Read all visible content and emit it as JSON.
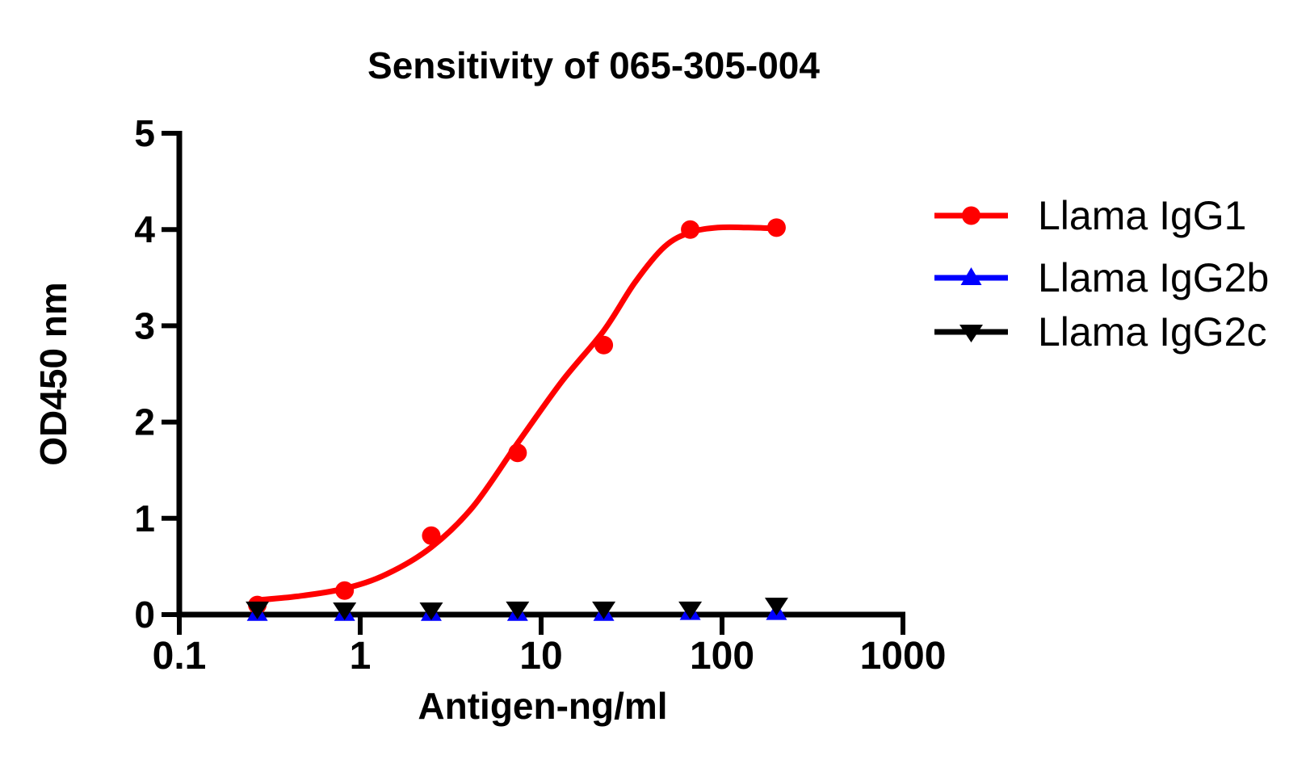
{
  "title": "Sensitivity of 065-305-004",
  "x_axis": {
    "label": "Antigen-ng/ml",
    "scale": "log",
    "min": 0.1,
    "max": 1000,
    "tick_values": [
      0.1,
      1,
      10,
      100,
      1000
    ],
    "tick_labels": [
      "0.1",
      "1",
      "10",
      "100",
      "1000"
    ]
  },
  "y_axis": {
    "label": "OD450 nm",
    "min": 0,
    "max": 5,
    "tick_values": [
      0,
      1,
      2,
      3,
      4,
      5
    ],
    "tick_labels": [
      "0",
      "1",
      "2",
      "3",
      "4",
      "5"
    ]
  },
  "legend": {
    "position": "right",
    "items": [
      {
        "label": "Llama IgG1",
        "color": "#ff0000",
        "marker": "circle"
      },
      {
        "label": "Llama IgG2b",
        "color": "#0000ff",
        "marker": "triangle-up"
      },
      {
        "label": "Llama IgG2c",
        "color": "#000000",
        "marker": "triangle-down"
      }
    ]
  },
  "chart_data": {
    "type": "scatter",
    "title": "Sensitivity of 065-305-004",
    "xlabel": "Antigen-ng/ml",
    "ylabel": "OD450 nm",
    "x_scale": "log",
    "xlim": [
      0.1,
      1000
    ],
    "ylim": [
      0,
      5
    ],
    "grid": false,
    "legend_position": "right",
    "x": [
      0.27,
      0.82,
      2.47,
      7.41,
      22.2,
      66.7,
      200
    ],
    "series": [
      {
        "name": "Llama IgG1",
        "color": "#ff0000",
        "marker": "circle",
        "values": [
          0.1,
          0.25,
          0.82,
          1.68,
          2.8,
          4.0,
          4.02
        ],
        "fit_curve": {
          "x": [
            0.27,
            0.45,
            0.82,
            1.4,
            2.47,
            4.2,
            7.41,
            13,
            22.2,
            33,
            48,
            66.7,
            95,
            140,
            200
          ],
          "y": [
            0.15,
            0.19,
            0.27,
            0.42,
            0.7,
            1.12,
            1.78,
            2.42,
            2.95,
            3.45,
            3.82,
            3.97,
            4.02,
            4.02,
            4.01
          ]
        }
      },
      {
        "name": "Llama IgG2b",
        "color": "#0000ff",
        "marker": "triangle-up",
        "values": [
          0.01,
          0.01,
          0.01,
          0.01,
          0.01,
          0.02,
          0.02
        ]
      },
      {
        "name": "Llama IgG2c",
        "color": "#000000",
        "marker": "triangle-down",
        "values": [
          0.06,
          0.05,
          0.05,
          0.06,
          0.06,
          0.06,
          0.1
        ]
      }
    ]
  }
}
